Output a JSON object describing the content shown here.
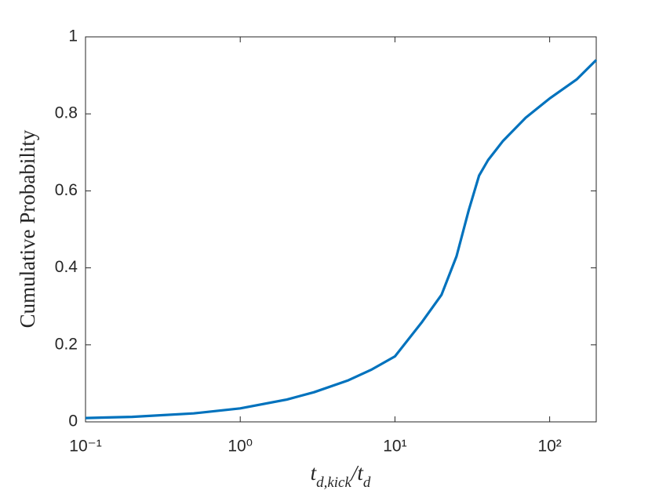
{
  "chart_data": {
    "type": "line",
    "xlabel": "t_{d,kick}/t_d",
    "ylabel": "Cumulative Probability",
    "x": [
      0.1,
      0.2,
      0.5,
      1,
      2,
      3,
      5,
      7,
      10,
      15,
      20,
      25,
      30,
      35,
      40,
      50,
      70,
      100,
      150,
      200
    ],
    "series": [
      {
        "color": "#0072bd",
        "values": [
          0.01,
          0.013,
          0.022,
          0.035,
          0.058,
          0.077,
          0.108,
          0.135,
          0.17,
          0.26,
          0.33,
          0.43,
          0.55,
          0.64,
          0.68,
          0.73,
          0.79,
          0.84,
          0.89,
          0.94
        ]
      }
    ],
    "xscale": "log",
    "xlim": [
      0.1,
      200
    ],
    "xticks": [
      {
        "value": 0.1,
        "label": "10⁻¹"
      },
      {
        "value": 1,
        "label": "10⁰"
      },
      {
        "value": 10,
        "label": "10¹"
      },
      {
        "value": 100,
        "label": "10²"
      }
    ],
    "ylim": [
      0,
      1
    ],
    "yticks": [
      0,
      0.2,
      0.4,
      0.6,
      0.8,
      1
    ],
    "grid": false
  }
}
